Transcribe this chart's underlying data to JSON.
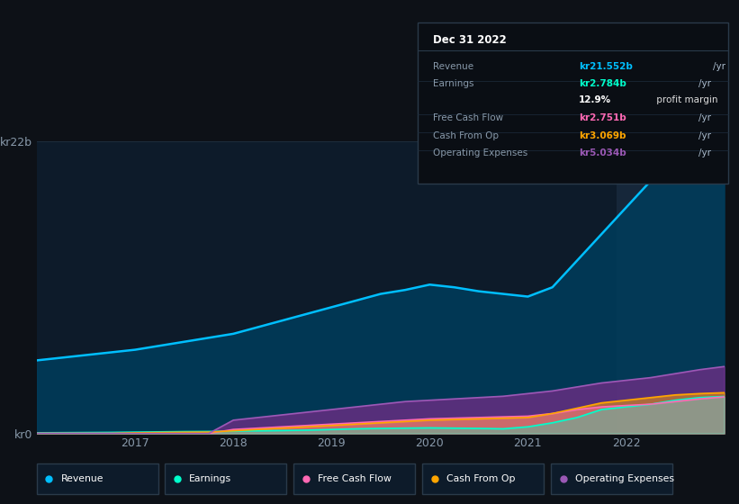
{
  "background_color": "#0d1117",
  "plot_bg_color": "#0d1b2a",
  "grid_color": "#1e2d3d",
  "highlight_color": "#1a2d42",
  "years": [
    2016.0,
    2016.25,
    2016.5,
    2016.75,
    2017.0,
    2017.25,
    2017.5,
    2017.75,
    2018.0,
    2018.25,
    2018.5,
    2018.75,
    2019.0,
    2019.25,
    2019.5,
    2019.75,
    2020.0,
    2020.25,
    2020.5,
    2020.75,
    2021.0,
    2021.25,
    2021.5,
    2021.75,
    2022.0,
    2022.25,
    2022.5,
    2022.75,
    2023.0
  ],
  "revenue": [
    5.5,
    5.7,
    5.9,
    6.1,
    6.3,
    6.6,
    6.9,
    7.2,
    7.5,
    8.0,
    8.5,
    9.0,
    9.5,
    10.0,
    10.5,
    10.8,
    11.2,
    11.0,
    10.7,
    10.5,
    10.3,
    11.0,
    13.0,
    15.0,
    17.0,
    19.0,
    20.5,
    21.5,
    21.552
  ],
  "earnings": [
    0.05,
    0.06,
    0.07,
    0.08,
    0.1,
    0.12,
    0.14,
    0.15,
    0.18,
    0.2,
    0.22,
    0.25,
    0.3,
    0.35,
    0.38,
    0.4,
    0.42,
    0.4,
    0.38,
    0.35,
    0.5,
    0.8,
    1.2,
    1.8,
    2.0,
    2.2,
    2.5,
    2.7,
    2.784
  ],
  "free_cash_flow": [
    0.0,
    0.0,
    0.0,
    0.0,
    0.0,
    0.0,
    0.0,
    0.0,
    0.3,
    0.4,
    0.5,
    0.6,
    0.7,
    0.8,
    0.9,
    1.0,
    1.1,
    1.15,
    1.2,
    1.25,
    1.3,
    1.5,
    1.8,
    2.0,
    2.1,
    2.2,
    2.4,
    2.6,
    2.751
  ],
  "cash_from_op": [
    0.0,
    0.0,
    0.0,
    0.0,
    0.05,
    0.07,
    0.09,
    0.1,
    0.2,
    0.3,
    0.4,
    0.5,
    0.6,
    0.7,
    0.8,
    0.9,
    1.0,
    1.05,
    1.1,
    1.15,
    1.2,
    1.5,
    1.9,
    2.3,
    2.5,
    2.7,
    2.9,
    3.0,
    3.069
  ],
  "operating_expenses": [
    0.0,
    0.0,
    0.0,
    0.0,
    0.0,
    0.0,
    0.0,
    0.0,
    1.0,
    1.2,
    1.4,
    1.6,
    1.8,
    2.0,
    2.2,
    2.4,
    2.5,
    2.6,
    2.7,
    2.8,
    3.0,
    3.2,
    3.5,
    3.8,
    4.0,
    4.2,
    4.5,
    4.8,
    5.034
  ],
  "revenue_color": "#00bfff",
  "earnings_color": "#00ffcc",
  "fcf_color": "#ff69b4",
  "cashop_color": "#ffa500",
  "opex_color": "#9b59b6",
  "revenue_fill": "#003d5c",
  "earnings_fill": "#00ffcc",
  "fcf_fill": "#ff69b4",
  "cashop_fill": "#ffa500",
  "opex_fill": "#7b2d8b",
  "ylim": [
    0,
    22
  ],
  "xlim": [
    2016.0,
    2023.0
  ],
  "yticks": [
    0,
    22
  ],
  "ytick_labels": [
    "kr0",
    "kr22b"
  ],
  "xticks": [
    2017,
    2018,
    2019,
    2020,
    2021,
    2022
  ],
  "highlight_start": 2021.9,
  "highlight_end": 2023.05,
  "tooltip_title": "Dec 31 2022",
  "tooltip_rows": [
    {
      "label": "Revenue",
      "value": "kr21.552b",
      "unit": "/yr",
      "color": "#00bfff"
    },
    {
      "label": "Earnings",
      "value": "kr2.784b",
      "unit": "/yr",
      "color": "#00ffcc"
    },
    {
      "label": "",
      "value": "12.9%",
      "unit": " profit margin",
      "color": "#ffffff"
    },
    {
      "label": "Free Cash Flow",
      "value": "kr2.751b",
      "unit": "/yr",
      "color": "#ff69b4"
    },
    {
      "label": "Cash From Op",
      "value": "kr3.069b",
      "unit": "/yr",
      "color": "#ffa500"
    },
    {
      "label": "Operating Expenses",
      "value": "kr5.034b",
      "unit": "/yr",
      "color": "#9b59b6"
    }
  ],
  "legend_items": [
    {
      "label": "Revenue",
      "color": "#00bfff"
    },
    {
      "label": "Earnings",
      "color": "#00ffcc"
    },
    {
      "label": "Free Cash Flow",
      "color": "#ff69b4"
    },
    {
      "label": "Cash From Op",
      "color": "#ffa500"
    },
    {
      "label": "Operating Expenses",
      "color": "#9b59b6"
    }
  ]
}
